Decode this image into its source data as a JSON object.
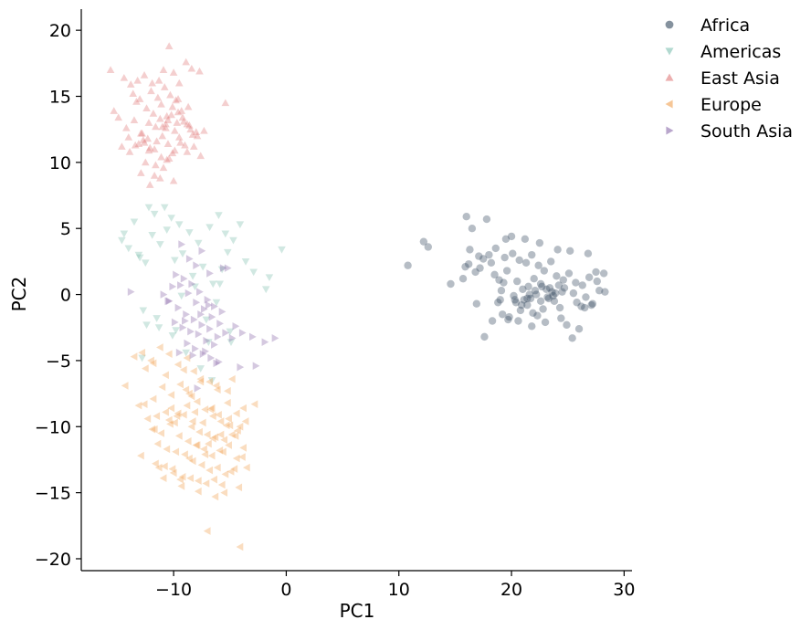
{
  "chart_data": {
    "type": "scatter",
    "xlabel": "PC1",
    "ylabel": "PC2",
    "xlim": [
      -18.2,
      30.7
    ],
    "ylim": [
      -20.9,
      21.6
    ],
    "xticks": [
      -10,
      0,
      10,
      20,
      30
    ],
    "yticks": [
      20,
      15,
      10,
      5,
      0,
      -5,
      -10,
      -15,
      -20
    ],
    "grid": false,
    "legend_position": "outside top-right",
    "series": [
      {
        "name": "Africa",
        "marker": "circle",
        "color": "#34495e",
        "x": [
          16.0,
          16.5,
          17.8,
          19.5,
          20.0,
          21.2,
          22.5,
          24.1,
          25.2,
          26.8,
          27.5,
          28.2,
          12.2,
          12.6,
          10.8,
          14.6,
          15.7,
          16.2,
          16.9,
          17.6,
          18.3,
          18.8,
          19.2,
          19.7,
          20.3,
          20.8,
          21.4,
          21.9,
          22.3,
          22.8,
          23.3,
          23.8,
          24.4,
          24.9,
          25.4,
          26.0,
          26.5,
          27.1,
          27.8,
          28.3,
          16.3,
          17.1,
          18.0,
          18.6,
          19.4,
          20.1,
          20.7,
          21.3,
          21.8,
          22.4,
          22.9,
          23.5,
          24.0,
          24.6,
          25.1,
          25.7,
          26.3,
          26.9,
          27.6,
          17.2,
          18.5,
          19.6,
          20.5,
          21.5,
          22.6,
          23.6,
          24.7,
          25.5,
          26.6,
          19.1,
          20.2,
          21.0,
          21.7,
          22.2,
          22.7,
          23.2,
          23.9,
          24.5,
          20.4,
          21.1,
          21.6,
          22.1,
          22.6,
          23.1,
          23.7,
          24.2,
          19.8,
          20.9,
          21.4,
          22.0,
          15.9,
          16.8,
          17.5,
          18.2,
          18.9,
          19.3,
          20.6,
          21.8,
          23.0,
          24.3,
          25.8,
          26.2,
          27.2,
          19.0,
          23.4
        ],
        "y": [
          5.9,
          5.0,
          5.7,
          4.2,
          4.4,
          4.2,
          3.9,
          3.4,
          3.3,
          3.1,
          1.7,
          1.6,
          4.0,
          3.6,
          2.2,
          0.8,
          1.2,
          2.3,
          -0.7,
          -3.2,
          -2.0,
          -0.6,
          -1.5,
          -1.9,
          -0.4,
          -1.2,
          -0.8,
          -1.4,
          -1.6,
          -1.1,
          -0.3,
          -0.5,
          -1.8,
          -2.3,
          -3.3,
          -2.6,
          -1.0,
          -0.8,
          0.3,
          0.2,
          3.4,
          2.9,
          3.0,
          3.5,
          2.8,
          3.1,
          2.6,
          2.4,
          3.0,
          2.2,
          1.8,
          2.5,
          1.4,
          1.1,
          1.6,
          0.9,
          0.7,
          1.3,
          1.0,
          2.0,
          1.5,
          1.8,
          1.0,
          0.6,
          0.8,
          0.2,
          0.5,
          0.1,
          -0.2,
          0.3,
          -0.1,
          0.4,
          -0.3,
          0.0,
          0.6,
          -0.2,
          0.1,
          0.2,
          -0.6,
          -0.4,
          0.0,
          0.3,
          -0.5,
          0.4,
          -0.1,
          0.7,
          -1.7,
          -0.8,
          -0.3,
          1.2,
          2.1,
          1.7,
          2.7,
          2.4,
          1.1,
          0.9,
          -2.0,
          -2.4,
          -2.1,
          -1.0,
          -0.6,
          -0.9,
          -0.7,
          -0.4,
          0.5
        ],
        "opacity": 0.6
      },
      {
        "name": "Americas",
        "marker": "triangle-down",
        "color": "#7fbfb0",
        "x": [
          -12.2,
          -11.7,
          -10.8,
          -10.2,
          -9.5,
          -8.6,
          -7.8,
          -6.8,
          -6.0,
          -5.2,
          -4.7,
          -4.1,
          -3.6,
          -2.9,
          -1.8,
          -1.5,
          -0.4,
          -14.6,
          -14.0,
          -13.5,
          -13.0,
          -12.5,
          -11.9,
          -11.2,
          -10.6,
          -9.9,
          -9.2,
          -8.3,
          -7.4,
          -6.5,
          -5.7,
          -5.4,
          -12.7,
          -11.3,
          -10.1,
          -8.9,
          -7.1,
          -6.2,
          -12.4,
          -9.3,
          -8.1,
          -7.6,
          -6.6,
          -5.9,
          -5.0,
          -13.1,
          -14.4,
          -11.5,
          -9.8,
          -6.9,
          -12.8,
          -4.9
        ],
        "y": [
          6.6,
          6.1,
          6.6,
          5.8,
          5.3,
          4.7,
          3.9,
          5.1,
          6.0,
          3.2,
          4.1,
          5.3,
          2.5,
          1.7,
          0.4,
          1.3,
          3.4,
          4.1,
          3.5,
          5.5,
          2.8,
          2.4,
          4.5,
          3.8,
          4.9,
          2.6,
          3.1,
          1.4,
          2.1,
          0.8,
          1.9,
          4.6,
          -1.2,
          -2.5,
          -3.1,
          -4.4,
          -1.9,
          -0.6,
          -2.3,
          -0.1,
          0.6,
          -5.6,
          -6.5,
          0.8,
          -2.8,
          3.0,
          4.6,
          -1.8,
          -2.7,
          -3.6,
          -4.8,
          -3.6
        ],
        "opacity": 0.6
      },
      {
        "name": "East Asia",
        "marker": "triangle-up",
        "color": "#e07a7a",
        "x": [
          -15.6,
          -14.4,
          -13.8,
          -13.2,
          -12.6,
          -11.9,
          -11.3,
          -10.9,
          -10.4,
          -10.0,
          -9.5,
          -8.9,
          -8.4,
          -7.7,
          -5.4,
          -15.3,
          -14.9,
          -14.2,
          -13.5,
          -12.9,
          -12.2,
          -11.6,
          -11.1,
          -10.6,
          -10.1,
          -9.6,
          -9.1,
          -8.5,
          -7.9,
          -7.3,
          -14.0,
          -13.4,
          -12.7,
          -12.1,
          -11.5,
          -11.0,
          -10.5,
          -9.9,
          -9.4,
          -8.8,
          -8.2,
          -7.6,
          -13.6,
          -13.0,
          -12.4,
          -11.8,
          -11.2,
          -10.7,
          -10.2,
          -9.7,
          -9.2,
          -8.6,
          -8.0,
          -12.8,
          -12.3,
          -11.7,
          -11.1,
          -10.6,
          -10.1,
          -9.5,
          -9.0,
          -13.3,
          -12.0,
          -11.4,
          -10.8,
          -10.3,
          -9.8,
          -9.3,
          -8.7,
          -12.5,
          -11.6,
          -10.9,
          -10.4,
          -12.9,
          -11.2,
          -10.0,
          -12.1,
          -11.7,
          -13.9,
          -12.6,
          -10.7,
          -9.6,
          -8.3,
          -11.0,
          -10.5,
          -12.2,
          -14.6,
          -13.1,
          -9.9,
          -8.8
        ],
        "y": [
          17.0,
          16.4,
          15.9,
          16.2,
          16.6,
          16.0,
          16.2,
          17.0,
          18.8,
          16.8,
          16.0,
          17.6,
          17.1,
          16.9,
          14.5,
          13.9,
          13.4,
          12.6,
          13.2,
          12.2,
          13.0,
          12.7,
          14.4,
          13.5,
          14.2,
          14.8,
          13.1,
          12.5,
          12.0,
          12.4,
          11.9,
          11.3,
          11.7,
          11.1,
          11.6,
          12.0,
          11.4,
          10.9,
          11.5,
          10.8,
          11.2,
          10.5,
          15.2,
          14.8,
          14.1,
          13.7,
          13.3,
          12.9,
          13.6,
          13.0,
          13.4,
          12.8,
          12.3,
          12.2,
          11.8,
          11.0,
          10.4,
          10.2,
          10.7,
          11.9,
          11.3,
          14.6,
          15.4,
          14.9,
          15.7,
          15.1,
          14.7,
          13.9,
          14.2,
          10.0,
          9.8,
          9.6,
          10.3,
          9.2,
          8.8,
          8.6,
          8.3,
          9.0,
          10.8,
          11.5,
          12.6,
          13.8,
          12.1,
          12.7,
          13.2,
          10.9,
          11.2,
          11.4,
          12.4,
          12.9
        ],
        "opacity": 0.6
      },
      {
        "name": "Europe",
        "marker": "triangle-left",
        "color": "#f0a050",
        "x": [
          -12.8,
          -12.0,
          -11.2,
          -10.4,
          -9.6,
          -8.8,
          -8.2,
          -7.6,
          -6.8,
          -6.1,
          -5.2,
          -4.4,
          -3.8,
          -2.8,
          -12.6,
          -11.8,
          -11.0,
          -10.2,
          -9.4,
          -8.6,
          -7.9,
          -7.2,
          -6.5,
          -5.8,
          -5.0,
          -4.3,
          -3.6,
          -12.3,
          -11.5,
          -10.7,
          -9.9,
          -9.1,
          -8.4,
          -7.7,
          -7.0,
          -6.3,
          -5.5,
          -4.8,
          -4.1,
          -11.9,
          -11.1,
          -10.3,
          -9.5,
          -8.7,
          -8.0,
          -7.3,
          -6.6,
          -5.9,
          -5.1,
          -4.4,
          -11.4,
          -10.6,
          -9.8,
          -9.0,
          -8.3,
          -7.5,
          -6.8,
          -6.1,
          -5.4,
          -4.6,
          -3.9,
          -11.6,
          -10.8,
          -10.0,
          -9.2,
          -8.5,
          -7.8,
          -7.1,
          -6.4,
          -5.7,
          -4.9,
          -4.2,
          -3.5,
          -10.9,
          -10.1,
          -9.3,
          -8.6,
          -7.9,
          -7.2,
          -6.5,
          -5.8,
          -5.1,
          -10.4,
          -9.6,
          -8.8,
          -8.1,
          -7.4,
          -6.7,
          -6.0,
          -5.3,
          -4.5,
          -3.8,
          -11.7,
          -10.2,
          -8.9,
          -7.6,
          -6.2,
          -4.8,
          -13.5,
          -12.5,
          -14.3,
          -13.1,
          -9.7,
          -8.3,
          -6.9,
          -5.6,
          -7.0,
          -4.1,
          -12.9,
          -11.3,
          -9.4,
          -7.8,
          -6.3,
          -5.5,
          -10.7,
          -9.1,
          -8.4,
          -6.6,
          -5.2,
          -11.8
        ],
        "y": [
          -4.4,
          -5.0,
          -4.0,
          -4.5,
          -5.3,
          -4.8,
          -5.8,
          -6.4,
          -6.6,
          -7.2,
          -8.2,
          -9.0,
          -8.6,
          -8.3,
          -8.3,
          -7.9,
          -7.0,
          -7.6,
          -6.8,
          -7.5,
          -8.1,
          -8.7,
          -9.2,
          -9.6,
          -9.9,
          -10.3,
          -9.6,
          -9.4,
          -9.2,
          -8.9,
          -9.7,
          -9.1,
          -10.0,
          -10.4,
          -10.6,
          -10.8,
          -11.0,
          -10.6,
          -10.0,
          -10.2,
          -10.5,
          -9.8,
          -10.7,
          -11.1,
          -11.4,
          -11.7,
          -12.2,
          -11.8,
          -11.4,
          -12.4,
          -11.3,
          -11.7,
          -11.9,
          -12.1,
          -12.6,
          -12.9,
          -13.3,
          -13.1,
          -13.6,
          -13.2,
          -12.3,
          -12.8,
          -13.0,
          -13.5,
          -13.8,
          -13.9,
          -14.1,
          -14.3,
          -14.0,
          -14.4,
          -13.4,
          -14.6,
          -13.1,
          -13.9,
          -13.2,
          -14.5,
          -12.4,
          -11.4,
          -12.1,
          -10.9,
          -10.6,
          -9.4,
          -9.5,
          -9.0,
          -8.4,
          -8.9,
          -9.7,
          -8.7,
          -9.1,
          -9.9,
          -10.7,
          -11.6,
          -10.2,
          -8.6,
          -7.2,
          -6.6,
          -6.9,
          -6.4,
          -4.7,
          -5.6,
          -6.9,
          -8.4,
          -9.2,
          -9.6,
          -11.3,
          -11.9,
          -17.9,
          -19.1,
          -12.2,
          -13.1,
          -14.0,
          -14.9,
          -15.3,
          -15.0,
          -6.1,
          -5.7,
          -7.7,
          -8.6,
          -7.3,
          -5.2
        ],
        "opacity": 0.6
      },
      {
        "name": "South Asia",
        "marker": "triangle-right",
        "color": "#8a6aaa",
        "x": [
          -9.3,
          -8.6,
          -7.5,
          -6.8,
          -5.6,
          -9.8,
          -9.1,
          -8.4,
          -7.7,
          -7.0,
          -6.4,
          -5.7,
          -10.4,
          -9.6,
          -8.9,
          -8.2,
          -7.5,
          -6.8,
          -6.1,
          -5.4,
          -4.8,
          -3.9,
          -3.0,
          -1.9,
          -1.0,
          -9.4,
          -8.7,
          -8.0,
          -7.3,
          -6.6,
          -5.9,
          -9.9,
          -9.2,
          -8.5,
          -7.8,
          -7.1,
          -6.4,
          -8.8,
          -8.1,
          -7.4,
          -6.7,
          -6.0,
          -9.5,
          -8.3,
          -7.2,
          -6.2,
          -13.8,
          -10.9,
          -10.5,
          -8.0,
          -5.2,
          -4.1,
          -2.7,
          -9.0,
          -7.6,
          -6.9,
          -7.9,
          -10.1,
          -4.5
        ],
        "y": [
          3.8,
          2.7,
          3.3,
          1.6,
          2.0,
          1.5,
          1.2,
          0.8,
          0.2,
          -0.4,
          -0.9,
          -1.3,
          -0.5,
          -1.0,
          -1.5,
          -1.9,
          -2.3,
          -2.6,
          -3.2,
          -2.9,
          -3.3,
          -2.9,
          -3.2,
          -3.6,
          -3.3,
          0.7,
          0.1,
          -0.6,
          -1.1,
          -1.7,
          -2.2,
          -2.1,
          -2.5,
          -2.8,
          -3.0,
          -3.5,
          -3.8,
          -3.7,
          -4.1,
          -4.5,
          -4.8,
          -5.1,
          -4.4,
          -4.6,
          -4.3,
          -5.2,
          0.2,
          0.0,
          -0.5,
          2.2,
          2.0,
          -5.5,
          -5.4,
          -2.0,
          -1.5,
          -0.8,
          -7.1,
          0.6,
          -2.4
        ],
        "opacity": 0.6
      }
    ]
  }
}
